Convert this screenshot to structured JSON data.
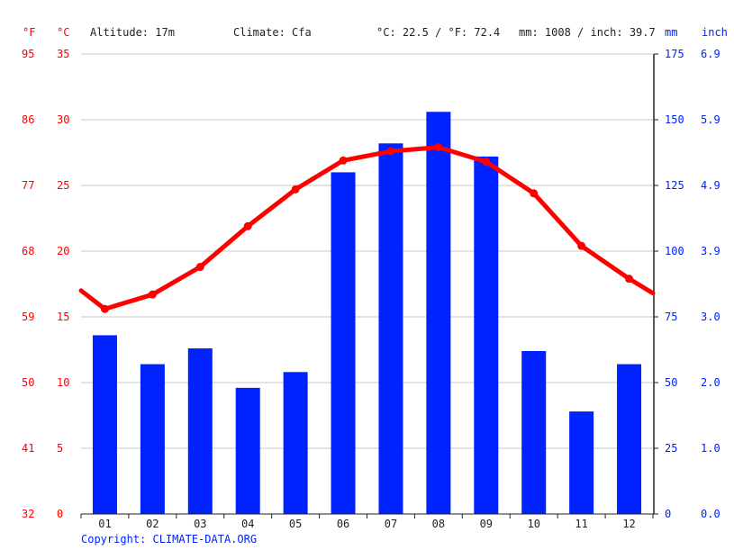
{
  "header": {
    "unit_f": "°F",
    "unit_c": "°C",
    "altitude": "Altitude: 17m",
    "climate": "Climate: Cfa",
    "temp_avg": "°C: 22.5 / °F: 72.4",
    "precip_total": "mm: 1008 / inch: 39.7",
    "unit_mm": "mm",
    "unit_inch": "inch"
  },
  "footer": {
    "copyright": "Copyright: CLIMATE-DATA.ORG"
  },
  "colors": {
    "temperature": "#ff0000",
    "precipitation": "#0022ff",
    "grid": "#c8c8c8",
    "axis": "#222222"
  },
  "chart_data": {
    "type": "bar",
    "categories": [
      "01",
      "02",
      "03",
      "04",
      "05",
      "06",
      "07",
      "08",
      "09",
      "10",
      "11",
      "12"
    ],
    "series": [
      {
        "type": "bar",
        "values": [
          68,
          57,
          63,
          48,
          54,
          130,
          141,
          153,
          136,
          62,
          39,
          57
        ]
      },
      {
        "type": "line",
        "values": [
          15.6,
          16.7,
          18.8,
          21.9,
          24.7,
          26.9,
          27.6,
          27.9,
          26.8,
          24.4,
          20.4,
          17.9
        ],
        "edge_start": 17.0,
        "edge_end": 16.8
      }
    ],
    "y_left_c": {
      "range": [
        0,
        35
      ],
      "ticks": [
        "0",
        "5",
        "10",
        "15",
        "20",
        "25",
        "30",
        "35"
      ]
    },
    "y_left_f": {
      "ticks": [
        "32",
        "41",
        "50",
        "59",
        "68",
        "77",
        "86",
        "95"
      ]
    },
    "y_right_mm": {
      "range": [
        0,
        175
      ],
      "ticks": [
        "0",
        "25",
        "50",
        "75",
        "100",
        "125",
        "150",
        "175"
      ]
    },
    "y_right_inch": {
      "ticks": [
        "0.0",
        "1.0",
        "2.0",
        "3.0",
        "3.9",
        "4.9",
        "5.9",
        "6.9"
      ]
    },
    "grid": true
  }
}
